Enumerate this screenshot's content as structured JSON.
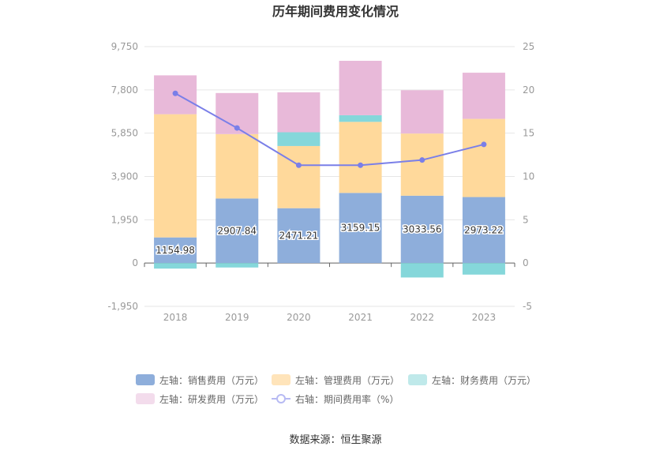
{
  "chart_data": {
    "type": "bar",
    "title": "历年期间费用变化情况",
    "categories": [
      "2018",
      "2019",
      "2020",
      "2021",
      "2022",
      "2023"
    ],
    "left_axis": {
      "ylim": [
        -1950,
        9750
      ],
      "ticks": [
        "-1,950",
        "0",
        "1,950",
        "3,900",
        "5,850",
        "7,800",
        "9,750"
      ],
      "tick_values": [
        -1950,
        0,
        1950,
        3900,
        5850,
        7800,
        9750
      ]
    },
    "right_axis": {
      "ylim": [
        -5,
        25
      ],
      "ticks": [
        "-5",
        "0",
        "5",
        "10",
        "15",
        "20",
        "25"
      ],
      "tick_values": [
        -5,
        0,
        5,
        10,
        15,
        20,
        25
      ]
    },
    "series": [
      {
        "name": "左轴：销售费用（万元）",
        "axis": "left",
        "kind": "bar",
        "color": "#8eaedb",
        "values": [
          1154.98,
          2907.84,
          2471.21,
          3159.15,
          3033.56,
          2973.22
        ],
        "labels": [
          "1154.98",
          "2907.84",
          "2471.21",
          "3159.15",
          "3033.56",
          "2973.22"
        ]
      },
      {
        "name": "左轴：管理费用（万元）",
        "axis": "left",
        "kind": "bar",
        "color": "#ffd99b",
        "values": [
          5550,
          2900,
          2800,
          3200,
          2800,
          3520
        ]
      },
      {
        "name": "左轴：财务费用（万元）",
        "axis": "left",
        "kind": "bar",
        "color": "#85d7da",
        "values": [
          -250,
          -200,
          620,
          300,
          -650,
          -520
        ]
      },
      {
        "name": "左轴：研发费用（万元）",
        "axis": "left",
        "kind": "bar",
        "color": "#e8b9d9",
        "values": [
          1750,
          1850,
          1800,
          2450,
          1950,
          2080
        ]
      },
      {
        "name": "右轴：期间费用率（%）",
        "axis": "right",
        "kind": "line",
        "color": "#7a7fe8",
        "values": [
          19.6,
          15.6,
          11.3,
          11.3,
          11.9,
          13.7
        ]
      }
    ],
    "legend": {
      "position": "bottom"
    }
  },
  "legend_labels": {
    "sales": "左轴：销售费用（万元）",
    "admin": "左轴：管理费用（万元）",
    "finance": "左轴：财务费用（万元）",
    "rd": "左轴：研发费用（万元）",
    "rate": "右轴：期间费用率（%）"
  },
  "source": "数据来源：恒生聚源"
}
